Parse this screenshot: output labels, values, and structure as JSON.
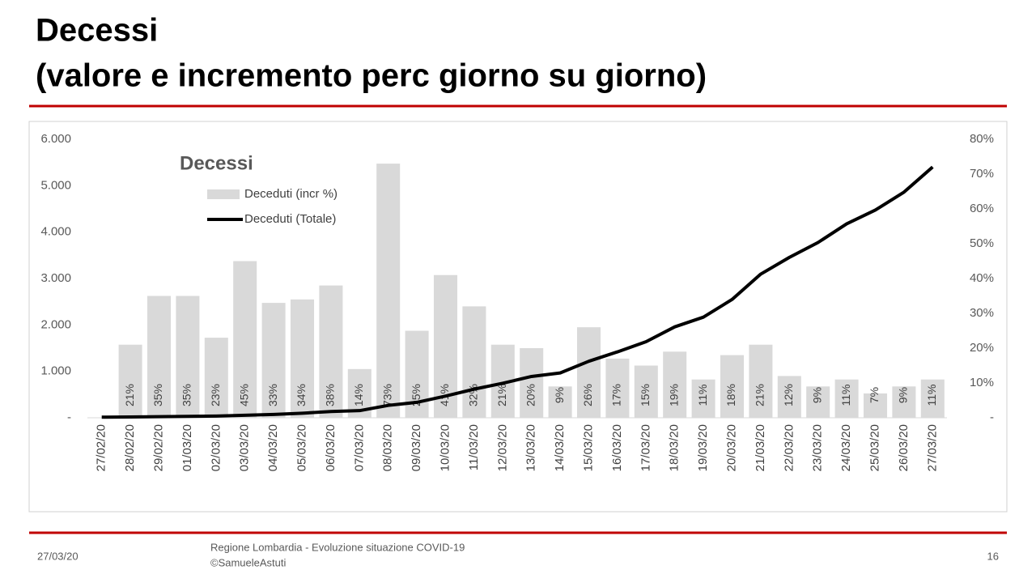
{
  "header": {
    "title": [
      "Decessi",
      "(valore e incremento perc giorno su giorno)"
    ]
  },
  "chart_data": {
    "type": "combo",
    "title": "Decessi",
    "categories": [
      "27/02/20",
      "28/02/20",
      "29/02/20",
      "01/03/20",
      "02/03/20",
      "03/03/20",
      "04/03/20",
      "05/03/20",
      "06/03/20",
      "07/03/20",
      "08/03/20",
      "09/03/20",
      "10/03/20",
      "11/03/20",
      "12/03/20",
      "13/03/20",
      "14/03/20",
      "15/03/20",
      "16/03/20",
      "17/03/20",
      "18/03/20",
      "19/03/20",
      "20/03/20",
      "21/03/20",
      "22/03/20",
      "23/03/20",
      "24/03/20",
      "25/03/20",
      "26/03/20",
      "27/03/20"
    ],
    "series": [
      {
        "name": "Deceduti (incr %)",
        "type": "bar",
        "axis": "y2",
        "color": "#d9d9d9",
        "values": [
          null,
          21,
          35,
          35,
          23,
          45,
          33,
          34,
          38,
          14,
          73,
          25,
          41,
          32,
          21,
          20,
          9,
          26,
          17,
          15,
          19,
          11,
          18,
          21,
          12,
          9,
          11,
          7,
          9,
          11
        ],
        "value_labels": [
          null,
          "21%",
          "35%",
          "35%",
          "23%",
          "45%",
          "33%",
          "34%",
          "38%",
          "14%",
          "73%",
          "25%",
          "41%",
          "32%",
          "21%",
          "20%",
          "9%",
          "26%",
          "17%",
          "15%",
          "19%",
          "11%",
          "18%",
          "21%",
          "12%",
          "9%",
          "11%",
          "7%",
          "9%",
          "11%"
        ]
      },
      {
        "name": "Deceduti (Totale)",
        "type": "line",
        "color": "#000000",
        "values": [
          14,
          17,
          23,
          31,
          38,
          55,
          73,
          98,
          135,
          154,
          267,
          333,
          468,
          617,
          744,
          890,
          966,
          1218,
          1420,
          1640,
          1959,
          2168,
          2549,
          3095,
          3456,
          3776,
          4178,
          4474,
          4861,
          5402
        ]
      }
    ],
    "ylim": [
      0,
      6000
    ],
    "yticks": [
      {
        "value": 0,
        "label": "-"
      },
      {
        "value": 1000,
        "label": "1.000"
      },
      {
        "value": 2000,
        "label": "2.000"
      },
      {
        "value": 3000,
        "label": "3.000"
      },
      {
        "value": 4000,
        "label": "4.000"
      },
      {
        "value": 5000,
        "label": "5.000"
      },
      {
        "value": 6000,
        "label": "6.000"
      }
    ],
    "y2lim": [
      0,
      80
    ],
    "y2ticks": [
      {
        "value": 0,
        "label": "-"
      },
      {
        "value": 10,
        "label": "10%"
      },
      {
        "value": 20,
        "label": "20%"
      },
      {
        "value": 30,
        "label": "30%"
      },
      {
        "value": 40,
        "label": "40%"
      },
      {
        "value": 50,
        "label": "50%"
      },
      {
        "value": 60,
        "label": "60%"
      },
      {
        "value": 70,
        "label": "70%"
      },
      {
        "value": 80,
        "label": "80%"
      }
    ],
    "grid": false
  },
  "footer": {
    "date": "27/03/20",
    "source": [
      "Regione Lombardia - Evoluzione situazione COVID-19",
      "©SamueleAstuti"
    ],
    "page": "16"
  }
}
